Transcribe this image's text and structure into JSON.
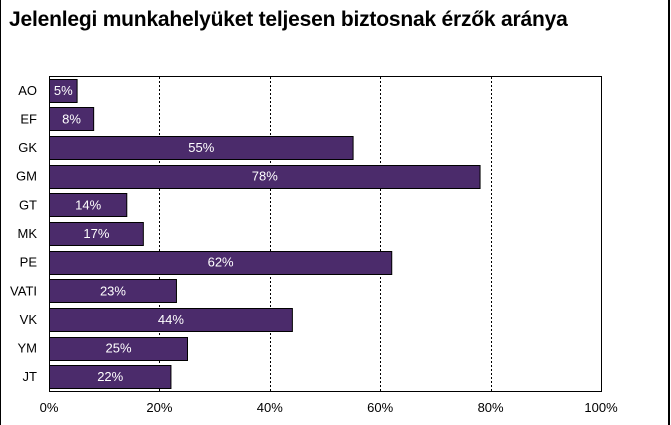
{
  "chart_data": {
    "type": "bar",
    "orientation": "horizontal",
    "title": "Jelenlegi munkahelyüket teljesen biztosnak érzők aránya",
    "categories": [
      "AO",
      "EF",
      "GK",
      "GM",
      "GT",
      "MK",
      "PE",
      "VATI",
      "VK",
      "YM",
      "JT"
    ],
    "values": [
      5,
      8,
      55,
      78,
      14,
      17,
      62,
      23,
      44,
      25,
      22
    ],
    "data_labels": [
      "5%",
      "8%",
      "55%",
      "78%",
      "14%",
      "17%",
      "62%",
      "23%",
      "44%",
      "25%",
      "22%"
    ],
    "x_ticks": [
      "0%",
      "20%",
      "40%",
      "60%",
      "80%",
      "100%"
    ],
    "xlim": [
      0,
      100
    ],
    "xlabel": "",
    "ylabel": "",
    "grid": "vertical dashed",
    "legend": "none",
    "bar_color": "#4b2b6b",
    "bar_edge_color": "#000000",
    "label_color": "#ffffff"
  }
}
